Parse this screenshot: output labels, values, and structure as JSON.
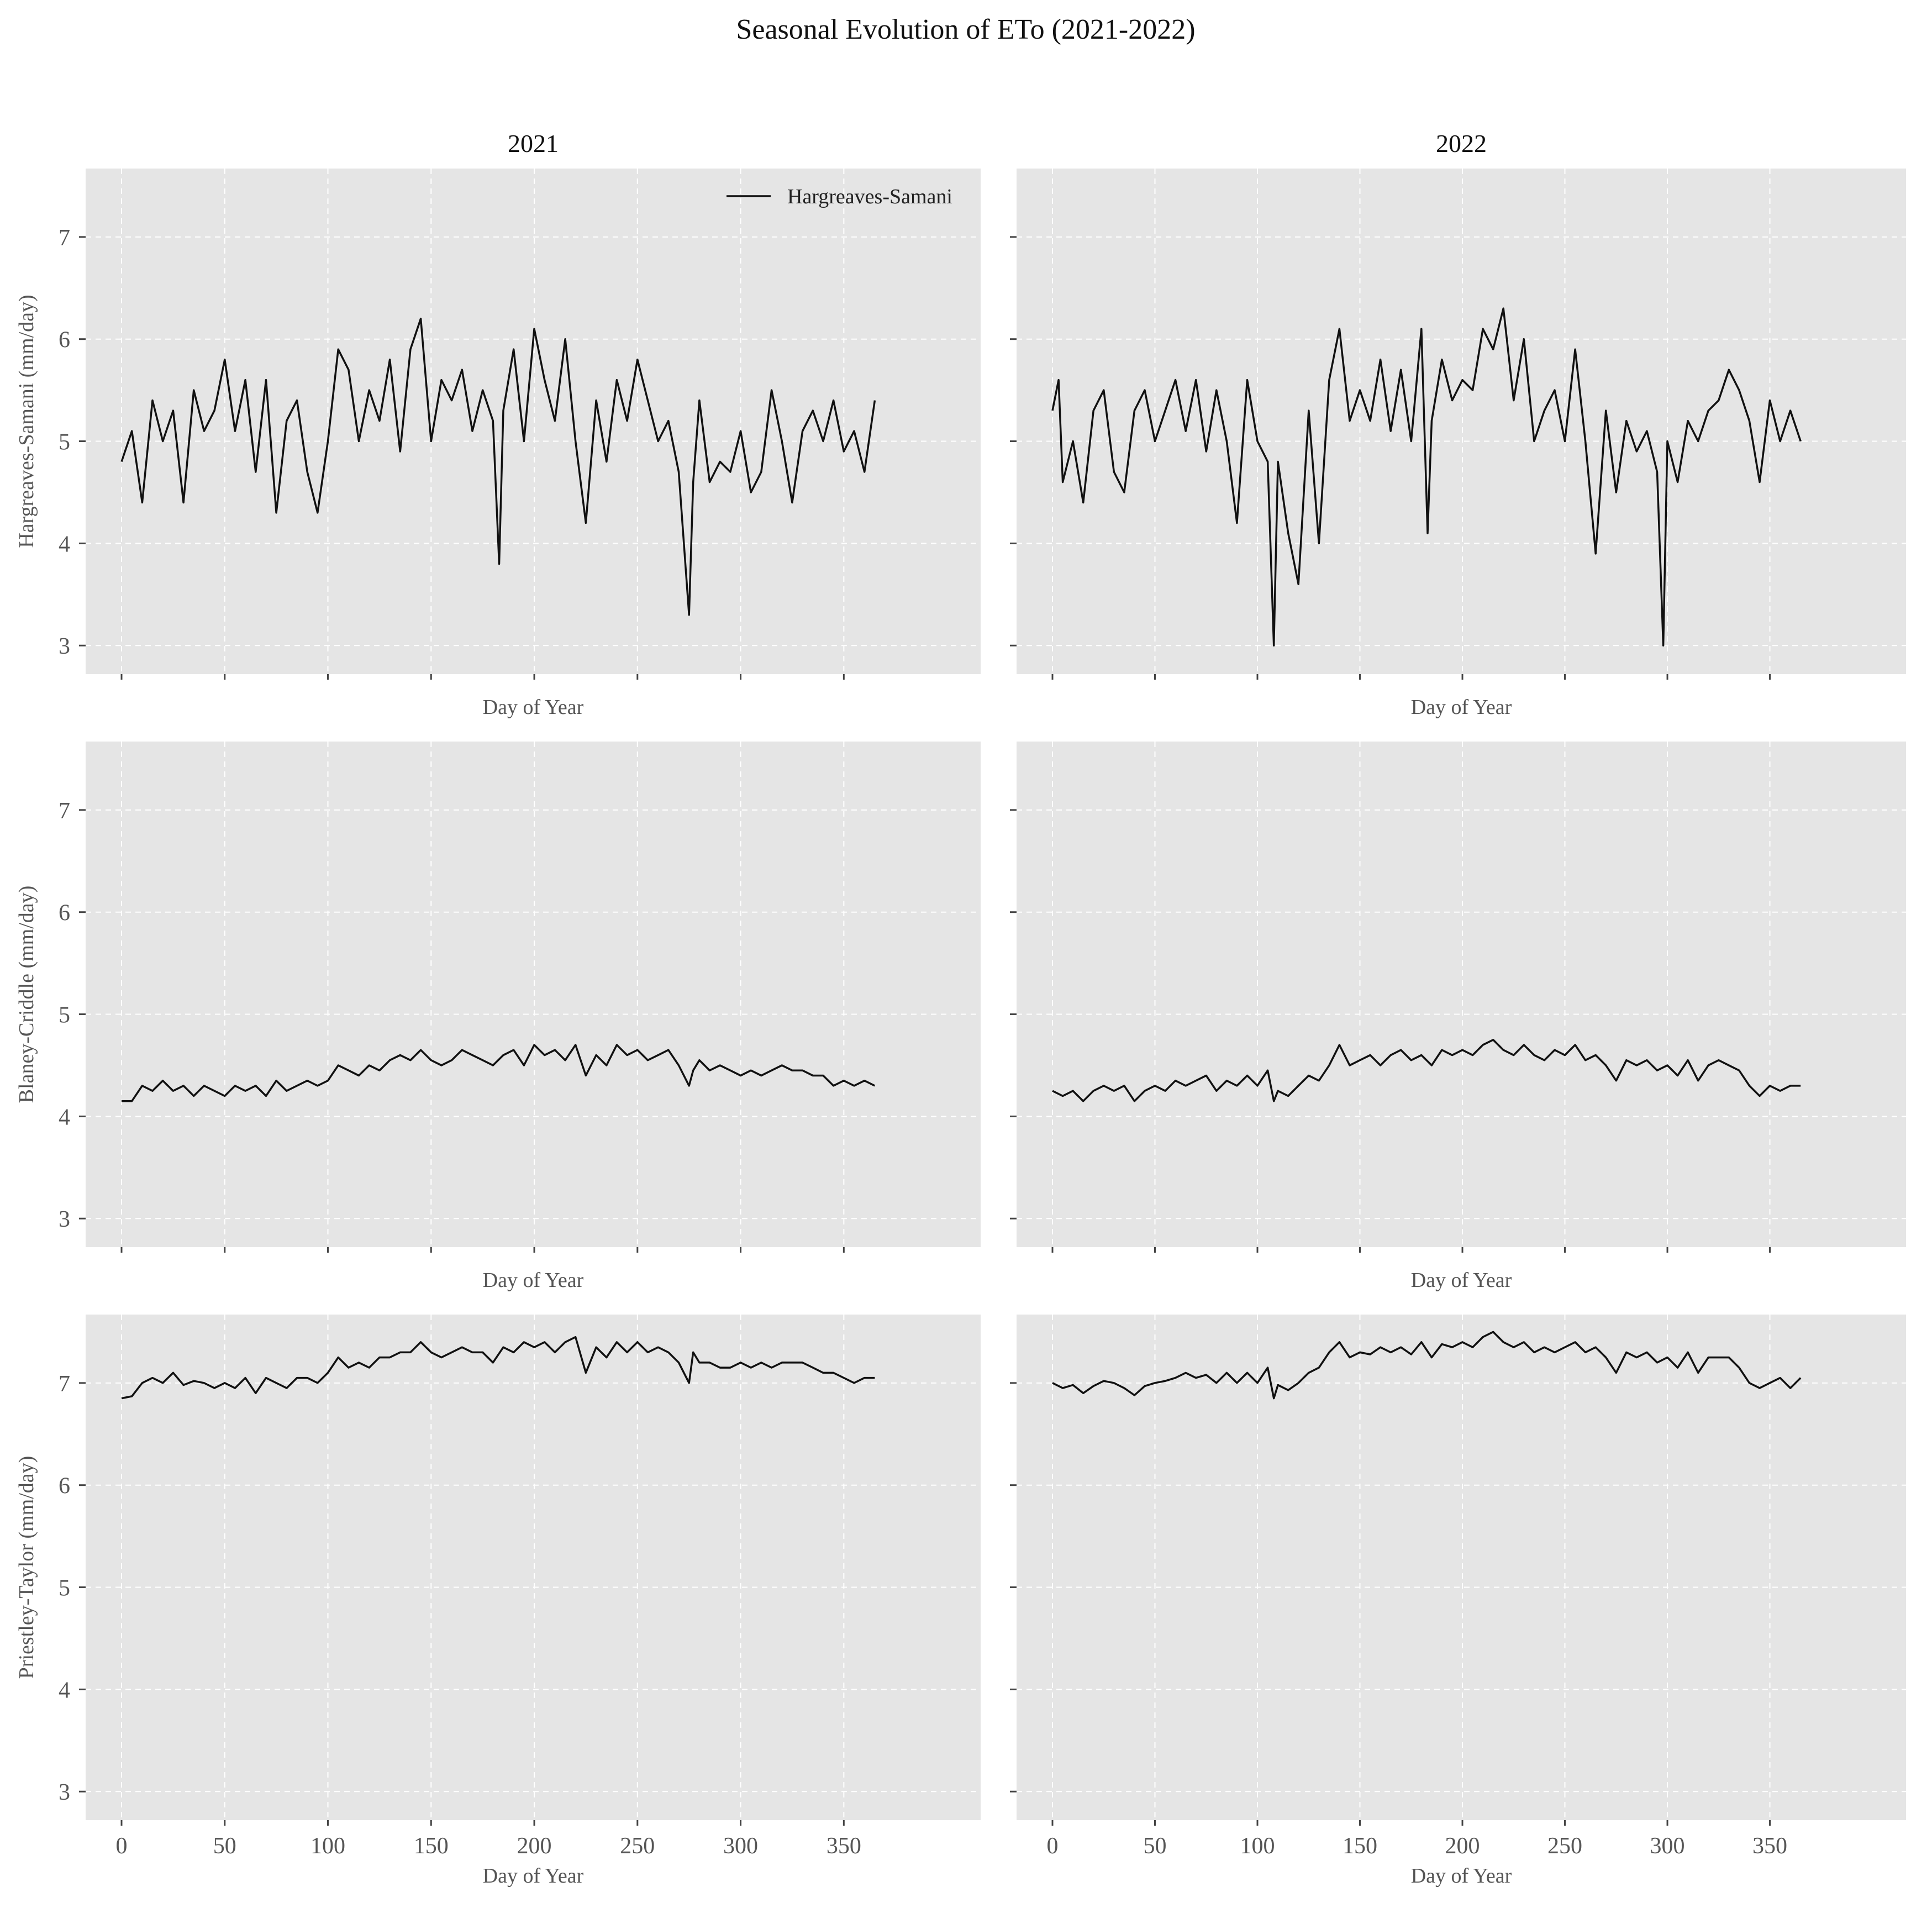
{
  "figure": {
    "title": "Seasonal Evolution of ETo (2021-2022)"
  },
  "colors": {
    "panel": "#e5e5e5",
    "line": "#111111",
    "grid": "#ffffff"
  },
  "chart_data": [
    {
      "type": "line",
      "panel": "2021 / Hargreaves-Samani",
      "title": "2021",
      "xlabel": "Day of Year",
      "ylabel": "Hargreaves-Samani (mm/day)",
      "xlim": [
        0,
        365
      ],
      "ylim": [
        3,
        7
      ],
      "xticks": [
        0,
        50,
        100,
        150,
        200,
        250,
        300,
        350
      ],
      "yticks": [
        3,
        4,
        5,
        6,
        7
      ],
      "show_xtick_labels": false,
      "grid": true,
      "legend": "top-right",
      "series": [
        {
          "name": "Hargreaves-Samani",
          "x": [
            0,
            5,
            10,
            15,
            20,
            25,
            30,
            35,
            40,
            45,
            50,
            55,
            60,
            65,
            70,
            75,
            80,
            85,
            90,
            95,
            100,
            105,
            110,
            115,
            120,
            125,
            130,
            135,
            140,
            145,
            150,
            155,
            160,
            165,
            170,
            175,
            180,
            183,
            185,
            190,
            195,
            200,
            205,
            210,
            215,
            220,
            225,
            230,
            235,
            240,
            245,
            250,
            255,
            260,
            265,
            270,
            275,
            277,
            280,
            285,
            290,
            295,
            300,
            305,
            310,
            315,
            320,
            325,
            330,
            335,
            340,
            345,
            350,
            355,
            360,
            365
          ],
          "y": [
            4.8,
            5.1,
            4.4,
            5.4,
            5.0,
            5.3,
            4.4,
            5.5,
            5.1,
            5.3,
            5.8,
            5.1,
            5.6,
            4.7,
            5.6,
            4.3,
            5.2,
            5.4,
            4.7,
            4.3,
            5.0,
            5.9,
            5.7,
            5.0,
            5.5,
            5.2,
            5.8,
            4.9,
            5.9,
            6.2,
            5.0,
            5.6,
            5.4,
            5.7,
            5.1,
            5.5,
            5.2,
            3.8,
            5.3,
            5.9,
            5.0,
            6.1,
            5.6,
            5.2,
            6.0,
            5.0,
            4.2,
            5.4,
            4.8,
            5.6,
            5.2,
            5.8,
            5.4,
            5.0,
            5.2,
            4.7,
            3.3,
            4.6,
            5.4,
            4.6,
            4.8,
            4.7,
            5.1,
            4.5,
            4.7,
            5.5,
            5.0,
            4.4,
            5.1,
            5.3,
            5.0,
            5.4,
            4.9,
            5.1,
            4.7,
            5.4
          ]
        }
      ]
    },
    {
      "type": "line",
      "panel": "2022 / Hargreaves-Samani",
      "title": "2022",
      "xlabel": "Day of Year",
      "ylabel": "",
      "xlim": [
        0,
        365
      ],
      "ylim": [
        3,
        7
      ],
      "xticks": [
        0,
        50,
        100,
        150,
        200,
        250,
        300,
        350
      ],
      "yticks": [
        3,
        4,
        5,
        6,
        7
      ],
      "show_xtick_labels": false,
      "grid": true,
      "series": [
        {
          "name": "",
          "x": [
            0,
            3,
            5,
            10,
            15,
            20,
            25,
            30,
            35,
            40,
            45,
            50,
            55,
            60,
            65,
            70,
            75,
            80,
            85,
            90,
            95,
            100,
            105,
            108,
            110,
            115,
            120,
            125,
            130,
            135,
            140,
            145,
            150,
            155,
            160,
            165,
            170,
            175,
            180,
            183,
            185,
            190,
            195,
            200,
            205,
            210,
            215,
            220,
            225,
            230,
            235,
            240,
            245,
            250,
            255,
            260,
            265,
            270,
            275,
            280,
            285,
            290,
            295,
            298,
            300,
            305,
            310,
            315,
            320,
            325,
            330,
            335,
            340,
            345,
            350,
            355,
            360,
            365
          ],
          "y": [
            5.3,
            5.6,
            4.6,
            5.0,
            4.4,
            5.3,
            5.5,
            4.7,
            4.5,
            5.3,
            5.5,
            5.0,
            5.3,
            5.6,
            5.1,
            5.6,
            4.9,
            5.5,
            5.0,
            4.2,
            5.6,
            5.0,
            4.8,
            3.0,
            4.8,
            4.1,
            3.6,
            5.3,
            4.0,
            5.6,
            6.1,
            5.2,
            5.5,
            5.2,
            5.8,
            5.1,
            5.7,
            5.0,
            6.1,
            4.1,
            5.2,
            5.8,
            5.4,
            5.6,
            5.5,
            6.1,
            5.9,
            6.3,
            5.4,
            6.0,
            5.0,
            5.3,
            5.5,
            5.0,
            5.9,
            5.0,
            3.9,
            5.3,
            4.5,
            5.2,
            4.9,
            5.1,
            4.7,
            3.0,
            5.0,
            4.6,
            5.2,
            5.0,
            5.3,
            5.4,
            5.7,
            5.5,
            5.2,
            4.6,
            5.4,
            5.0,
            5.3,
            5.0
          ]
        }
      ]
    },
    {
      "type": "line",
      "panel": "2021 / Blaney-Criddle",
      "title": "",
      "xlabel": "Day of Year",
      "ylabel": "Blaney-Criddle (mm/day)",
      "xlim": [
        0,
        365
      ],
      "ylim": [
        3,
        7
      ],
      "xticks": [
        0,
        50,
        100,
        150,
        200,
        250,
        300,
        350
      ],
      "yticks": [
        3,
        4,
        5,
        6,
        7
      ],
      "show_xtick_labels": false,
      "grid": true,
      "series": [
        {
          "name": "",
          "x": [
            0,
            5,
            10,
            15,
            20,
            25,
            30,
            35,
            40,
            45,
            50,
            55,
            60,
            65,
            70,
            75,
            80,
            85,
            90,
            95,
            100,
            105,
            110,
            115,
            120,
            125,
            130,
            135,
            140,
            145,
            150,
            155,
            160,
            165,
            170,
            175,
            180,
            185,
            190,
            195,
            200,
            205,
            210,
            215,
            220,
            225,
            230,
            235,
            240,
            245,
            250,
            255,
            260,
            265,
            270,
            275,
            277,
            280,
            285,
            290,
            295,
            300,
            305,
            310,
            315,
            320,
            325,
            330,
            335,
            340,
            345,
            350,
            355,
            360,
            365
          ],
          "y": [
            4.15,
            4.15,
            4.3,
            4.25,
            4.35,
            4.25,
            4.3,
            4.2,
            4.3,
            4.25,
            4.2,
            4.3,
            4.25,
            4.3,
            4.2,
            4.35,
            4.25,
            4.3,
            4.35,
            4.3,
            4.35,
            4.5,
            4.45,
            4.4,
            4.5,
            4.45,
            4.55,
            4.6,
            4.55,
            4.65,
            4.55,
            4.5,
            4.55,
            4.65,
            4.6,
            4.55,
            4.5,
            4.6,
            4.65,
            4.5,
            4.7,
            4.6,
            4.65,
            4.55,
            4.7,
            4.4,
            4.6,
            4.5,
            4.7,
            4.6,
            4.65,
            4.55,
            4.6,
            4.65,
            4.5,
            4.3,
            4.45,
            4.55,
            4.45,
            4.5,
            4.45,
            4.4,
            4.45,
            4.4,
            4.45,
            4.5,
            4.45,
            4.45,
            4.4,
            4.4,
            4.3,
            4.35,
            4.3,
            4.35,
            4.3
          ]
        }
      ]
    },
    {
      "type": "line",
      "panel": "2022 / Blaney-Criddle",
      "title": "",
      "xlabel": "Day of Year",
      "ylabel": "",
      "xlim": [
        0,
        365
      ],
      "ylim": [
        3,
        7
      ],
      "xticks": [
        0,
        50,
        100,
        150,
        200,
        250,
        300,
        350
      ],
      "yticks": [
        3,
        4,
        5,
        6,
        7
      ],
      "show_xtick_labels": false,
      "grid": true,
      "series": [
        {
          "name": "",
          "x": [
            0,
            5,
            10,
            15,
            20,
            25,
            30,
            35,
            40,
            45,
            50,
            55,
            60,
            65,
            70,
            75,
            80,
            85,
            90,
            95,
            100,
            105,
            108,
            110,
            115,
            120,
            125,
            130,
            135,
            140,
            145,
            150,
            155,
            160,
            165,
            170,
            175,
            180,
            185,
            190,
            195,
            200,
            205,
            210,
            215,
            220,
            225,
            230,
            235,
            240,
            245,
            250,
            255,
            260,
            265,
            270,
            275,
            280,
            285,
            290,
            295,
            300,
            305,
            310,
            315,
            320,
            325,
            330,
            335,
            340,
            345,
            350,
            355,
            360,
            365
          ],
          "y": [
            4.25,
            4.2,
            4.25,
            4.15,
            4.25,
            4.3,
            4.25,
            4.3,
            4.15,
            4.25,
            4.3,
            4.25,
            4.35,
            4.3,
            4.35,
            4.4,
            4.25,
            4.35,
            4.3,
            4.4,
            4.3,
            4.45,
            4.15,
            4.25,
            4.2,
            4.3,
            4.4,
            4.35,
            4.5,
            4.7,
            4.5,
            4.55,
            4.6,
            4.5,
            4.6,
            4.65,
            4.55,
            4.6,
            4.5,
            4.65,
            4.6,
            4.65,
            4.6,
            4.7,
            4.75,
            4.65,
            4.6,
            4.7,
            4.6,
            4.55,
            4.65,
            4.6,
            4.7,
            4.55,
            4.6,
            4.5,
            4.35,
            4.55,
            4.5,
            4.55,
            4.45,
            4.5,
            4.4,
            4.55,
            4.35,
            4.5,
            4.55,
            4.5,
            4.45,
            4.3,
            4.2,
            4.3,
            4.25,
            4.3,
            4.3
          ]
        }
      ]
    },
    {
      "type": "line",
      "panel": "2021 / Priestley-Taylor",
      "title": "",
      "xlabel": "Day of Year",
      "ylabel": "Priestley-Taylor (mm/day)",
      "xlim": [
        0,
        365
      ],
      "ylim": [
        3,
        7
      ],
      "xticks": [
        0,
        50,
        100,
        150,
        200,
        250,
        300,
        350
      ],
      "yticks": [
        3,
        4,
        5,
        6,
        7
      ],
      "show_xtick_labels": true,
      "grid": true,
      "series": [
        {
          "name": "",
          "x": [
            0,
            5,
            10,
            15,
            20,
            25,
            30,
            35,
            40,
            45,
            50,
            55,
            60,
            65,
            70,
            75,
            80,
            85,
            90,
            95,
            100,
            105,
            110,
            115,
            120,
            125,
            130,
            135,
            140,
            145,
            150,
            155,
            160,
            165,
            170,
            175,
            180,
            185,
            190,
            195,
            200,
            205,
            210,
            215,
            220,
            225,
            230,
            235,
            240,
            245,
            250,
            255,
            260,
            265,
            270,
            275,
            277,
            280,
            285,
            290,
            295,
            300,
            305,
            310,
            315,
            320,
            325,
            330,
            335,
            340,
            345,
            350,
            355,
            360,
            365
          ],
          "y": [
            6.85,
            6.87,
            7.0,
            7.05,
            7.0,
            7.1,
            6.98,
            7.02,
            7.0,
            6.95,
            7.0,
            6.95,
            7.05,
            6.9,
            7.05,
            7.0,
            6.95,
            7.05,
            7.05,
            7.0,
            7.1,
            7.25,
            7.15,
            7.2,
            7.15,
            7.25,
            7.25,
            7.3,
            7.3,
            7.4,
            7.3,
            7.25,
            7.3,
            7.35,
            7.3,
            7.3,
            7.2,
            7.35,
            7.3,
            7.4,
            7.35,
            7.4,
            7.3,
            7.4,
            7.45,
            7.1,
            7.35,
            7.25,
            7.4,
            7.3,
            7.4,
            7.3,
            7.35,
            7.3,
            7.2,
            7.0,
            7.3,
            7.2,
            7.2,
            7.15,
            7.15,
            7.2,
            7.15,
            7.2,
            7.15,
            7.2,
            7.2,
            7.2,
            7.15,
            7.1,
            7.1,
            7.05,
            7.0,
            7.05,
            7.05
          ]
        }
      ]
    },
    {
      "type": "line",
      "panel": "2022 / Priestley-Taylor",
      "title": "",
      "xlabel": "Day of Year",
      "ylabel": "",
      "xlim": [
        0,
        365
      ],
      "ylim": [
        3,
        7
      ],
      "xticks": [
        0,
        50,
        100,
        150,
        200,
        250,
        300,
        350
      ],
      "yticks": [
        3,
        4,
        5,
        6,
        7
      ],
      "show_xtick_labels": true,
      "grid": true,
      "series": [
        {
          "name": "",
          "x": [
            0,
            5,
            10,
            15,
            20,
            25,
            30,
            35,
            40,
            45,
            50,
            55,
            60,
            65,
            70,
            75,
            80,
            85,
            90,
            95,
            100,
            105,
            108,
            110,
            115,
            120,
            125,
            130,
            135,
            140,
            145,
            150,
            155,
            160,
            165,
            170,
            175,
            180,
            185,
            190,
            195,
            200,
            205,
            210,
            215,
            220,
            225,
            230,
            235,
            240,
            245,
            250,
            255,
            260,
            265,
            270,
            275,
            280,
            285,
            290,
            295,
            300,
            305,
            310,
            315,
            320,
            325,
            330,
            335,
            340,
            345,
            350,
            355,
            360,
            365
          ],
          "y": [
            7.0,
            6.95,
            6.98,
            6.9,
            6.97,
            7.02,
            7.0,
            6.95,
            6.88,
            6.97,
            7.0,
            7.02,
            7.05,
            7.1,
            7.05,
            7.08,
            7.0,
            7.1,
            7.0,
            7.1,
            7.0,
            7.15,
            6.85,
            6.98,
            6.93,
            7.0,
            7.1,
            7.15,
            7.3,
            7.4,
            7.25,
            7.3,
            7.28,
            7.35,
            7.3,
            7.35,
            7.28,
            7.4,
            7.25,
            7.38,
            7.35,
            7.4,
            7.35,
            7.45,
            7.5,
            7.4,
            7.35,
            7.4,
            7.3,
            7.35,
            7.3,
            7.35,
            7.4,
            7.3,
            7.35,
            7.25,
            7.1,
            7.3,
            7.25,
            7.3,
            7.2,
            7.25,
            7.15,
            7.3,
            7.1,
            7.25,
            7.25,
            7.25,
            7.15,
            7.0,
            6.95,
            7.0,
            7.05,
            6.95,
            7.05
          ]
        }
      ]
    }
  ]
}
